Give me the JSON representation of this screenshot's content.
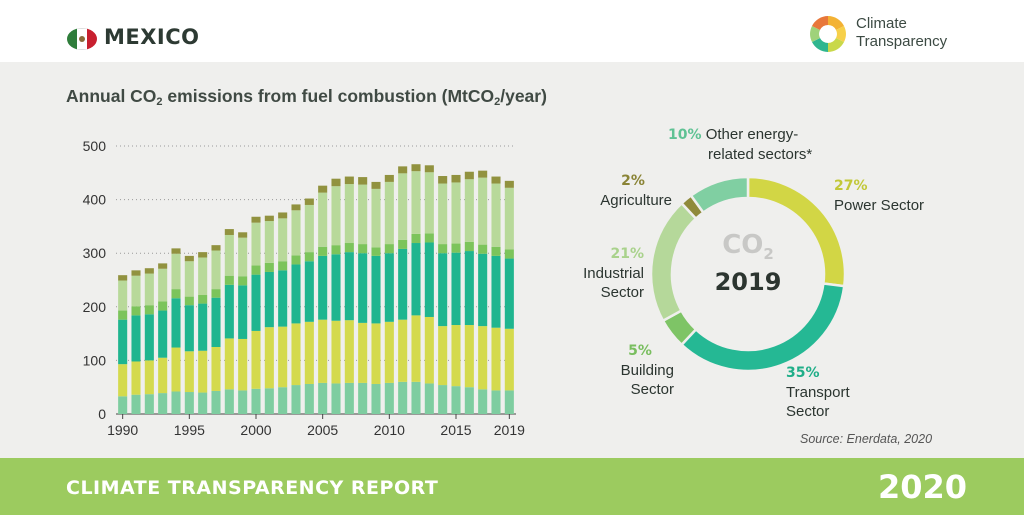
{
  "header": {
    "country": "MEXICO",
    "logo_line1": "Climate",
    "logo_line2": "Transparency"
  },
  "footer": {
    "title": "CLIMATE TRANSPARENCY REPORT",
    "year": "2020"
  },
  "colors": {
    "other": "#80cfa2",
    "agriculture": "#8f8a3a",
    "industrial": "#b5d89a",
    "building": "#7ec466",
    "transport": "#25b894",
    "power": "#d2d645",
    "bar_transport": "#1fb58f",
    "bar_power": "#d4da4d",
    "bar_building": "#7cc45b",
    "bar_industrial": "#b8d99a",
    "bar_agriculture": "#91923f",
    "bar_other": "#7ecda0"
  },
  "chart_data": [
    {
      "type": "bar",
      "stacked": true,
      "title_parts": [
        "Annual CO",
        "2",
        " emissions from fuel combustion (MtCO",
        "2",
        "/year)"
      ],
      "x": [
        1990,
        1991,
        1992,
        1993,
        1994,
        1995,
        1996,
        1997,
        1998,
        1999,
        2000,
        2001,
        2002,
        2003,
        2004,
        2005,
        2006,
        2007,
        2008,
        2009,
        2010,
        2011,
        2012,
        2013,
        2014,
        2015,
        2016,
        2017,
        2018,
        2019
      ],
      "x_tick_labels": [
        "1990",
        "1995",
        "2000",
        "2005",
        "2010",
        "2015",
        "2019"
      ],
      "y_ticks": [
        0,
        100,
        200,
        300,
        400,
        500
      ],
      "ylim": [
        0,
        500
      ],
      "grid": "horizontal-dotted",
      "series": [
        {
          "key": "other",
          "values": [
            33,
            36,
            37,
            39,
            42,
            41,
            40,
            43,
            46,
            44,
            47,
            48,
            50,
            54,
            56,
            58,
            57,
            58,
            58,
            56,
            58,
            60,
            60,
            57,
            54,
            52,
            50,
            46,
            44,
            44
          ]
        },
        {
          "key": "power",
          "values": [
            60,
            62,
            63,
            66,
            82,
            76,
            78,
            82,
            95,
            96,
            108,
            114,
            113,
            115,
            116,
            118,
            117,
            117,
            112,
            113,
            114,
            116,
            124,
            124,
            110,
            114,
            116,
            118,
            117,
            115
          ]
        },
        {
          "key": "transport",
          "values": [
            83,
            86,
            86,
            88,
            92,
            86,
            88,
            92,
            100,
            100,
            105,
            103,
            105,
            110,
            113,
            119,
            124,
            127,
            130,
            126,
            128,
            132,
            135,
            139,
            136,
            135,
            138,
            135,
            134,
            131
          ]
        },
        {
          "key": "building",
          "values": [
            17,
            17,
            17,
            17,
            17,
            16,
            16,
            16,
            17,
            17,
            17,
            17,
            17,
            17,
            17,
            17,
            17,
            17,
            17,
            16,
            17,
            17,
            17,
            17,
            17,
            17,
            17,
            17,
            17,
            17
          ]
        },
        {
          "key": "industrial",
          "values": [
            56,
            57,
            59,
            61,
            66,
            66,
            70,
            72,
            76,
            72,
            80,
            78,
            80,
            84,
            88,
            101,
            110,
            110,
            111,
            109,
            116,
            124,
            117,
            114,
            113,
            114,
            117,
            125,
            118,
            115
          ]
        },
        {
          "key": "agriculture",
          "values": [
            10,
            10,
            10,
            10,
            10,
            10,
            10,
            10,
            11,
            10,
            11,
            10,
            11,
            11,
            12,
            13,
            14,
            14,
            14,
            13,
            13,
            13,
            13,
            13,
            14,
            14,
            14,
            13,
            13,
            13
          ]
        }
      ]
    },
    {
      "type": "pie",
      "donut": true,
      "center_label": "CO",
      "center_sub": "2",
      "center_year": "2019",
      "slices": [
        {
          "key": "power",
          "pct": "27%",
          "value": 27,
          "label_lines": [
            "Power Sector"
          ]
        },
        {
          "key": "transport",
          "pct": "35%",
          "value": 35,
          "label_lines": [
            "Transport",
            "Sector"
          ]
        },
        {
          "key": "building",
          "pct": "5%",
          "value": 5,
          "label_lines": [
            "Building",
            "Sector"
          ]
        },
        {
          "key": "industrial",
          "pct": "21%",
          "value": 21,
          "label_lines": [
            "Industrial",
            "Sector"
          ]
        },
        {
          "key": "agriculture",
          "pct": "2%",
          "value": 2,
          "label_lines": [
            "Agriculture"
          ]
        },
        {
          "key": "other",
          "pct": "10%",
          "value": 10,
          "label_lines": [
            "Other energy-",
            "related sectors*"
          ]
        }
      ]
    }
  ],
  "source": "Source: Enerdata, 2020"
}
